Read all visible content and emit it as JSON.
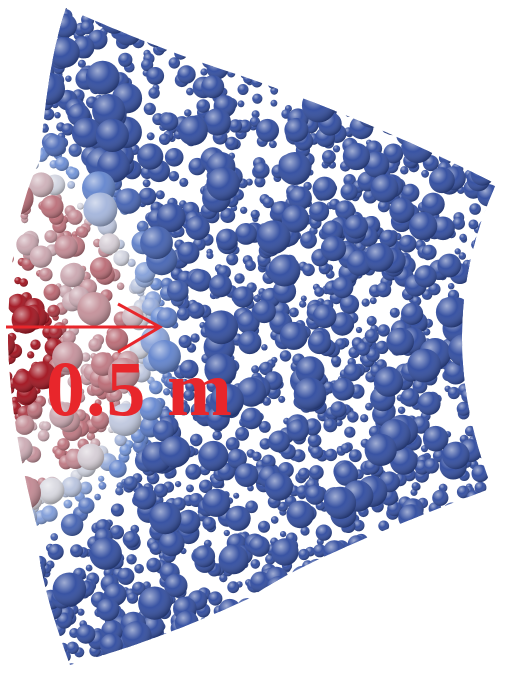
{
  "figure": {
    "scale_label": "0.5 m",
    "colors": {
      "background": "#ffffff",
      "annotation": "#e8262b",
      "particle_high": "#a0101c",
      "particle_mid": "#d8d8e0",
      "particle_low": "#2e4a9e"
    }
  }
}
